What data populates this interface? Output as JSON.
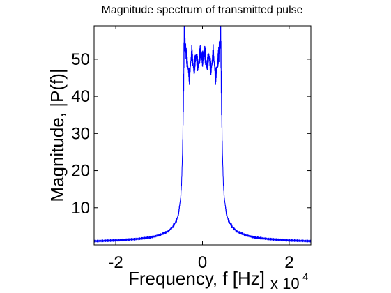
{
  "chart_data": {
    "type": "line",
    "title": "Magnitude spectrum of transmitted pulse",
    "xlabel": "Frequency, f [Hz]",
    "ylabel": "Magnitude, |P(f)|",
    "x_multiplier_label": "x 10",
    "x_multiplier_exponent": "4",
    "xlim": [
      -2.5,
      2.5
    ],
    "ylim": [
      0,
      59
    ],
    "xticks": [
      -2,
      0,
      2
    ],
    "xtick_labels": [
      "-2",
      "0",
      "2"
    ],
    "yticks": [
      10,
      20,
      30,
      40,
      50
    ],
    "ytick_labels": [
      "10",
      "20",
      "30",
      "40",
      "50"
    ],
    "grid": false,
    "line_color": "#0000ff",
    "series": [
      {
        "x": [
          -2.5,
          -2.0,
          -1.5,
          -1.2,
          -1.0,
          -0.8,
          -0.7,
          -0.6,
          -0.55,
          -0.5,
          -0.48,
          -0.46,
          -0.44,
          -0.43,
          -0.42,
          -0.4,
          -0.35,
          -0.3,
          -0.25,
          -0.2,
          -0.15,
          -0.1,
          -0.05,
          0.0,
          0.05,
          0.1,
          0.15,
          0.2,
          0.25,
          0.3,
          0.35,
          0.4,
          0.42,
          0.43,
          0.44,
          0.46,
          0.48,
          0.5,
          0.55,
          0.6,
          0.7,
          0.8,
          1.0,
          1.2,
          1.5,
          2.0,
          2.5
        ],
        "y": [
          1.0,
          1.2,
          1.6,
          2.0,
          2.6,
          3.6,
          4.6,
          6.5,
          8.5,
          13,
          17,
          25,
          38,
          48,
          58,
          54,
          49,
          45,
          52,
          47,
          51,
          48,
          52,
          50,
          52,
          48,
          51,
          47,
          52,
          45,
          49,
          54,
          58,
          48,
          38,
          25,
          17,
          13,
          8.5,
          6.5,
          4.6,
          3.6,
          2.6,
          2.0,
          1.6,
          1.2,
          1.0
        ]
      }
    ]
  }
}
